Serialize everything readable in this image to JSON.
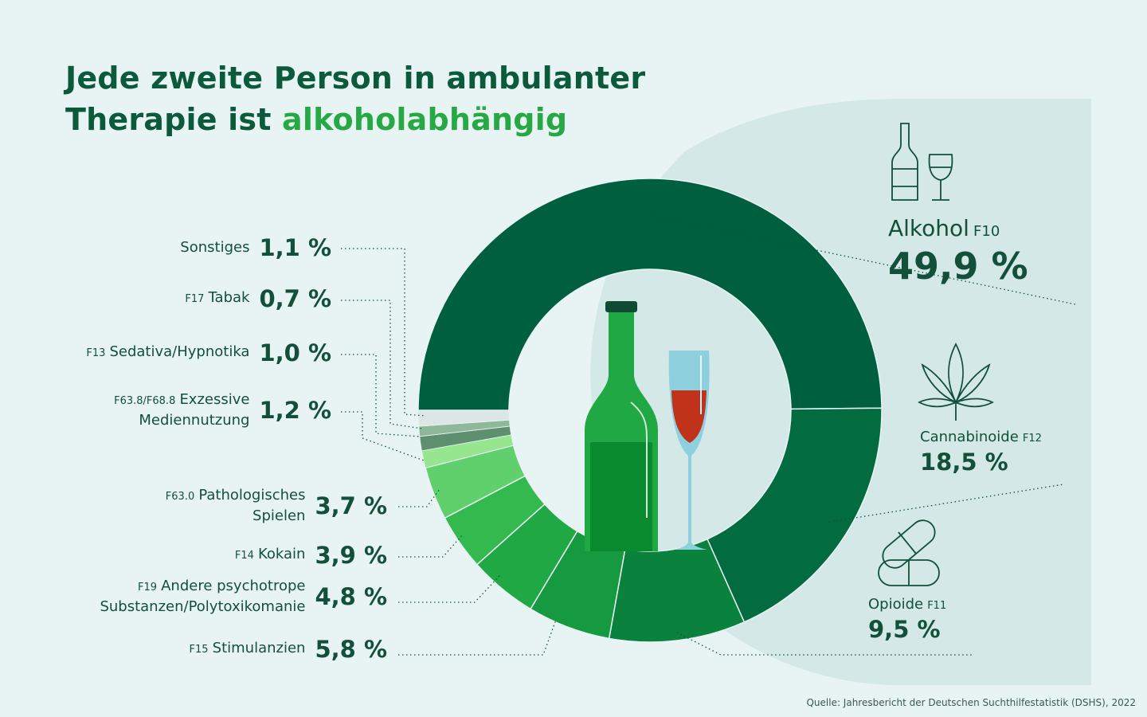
{
  "header": {
    "title_line1": "Jede zweite Person in ambulanter",
    "title_line2_prefix": "Therapie ist ",
    "title_highlight": "alkoholabhängig"
  },
  "source": "Quelle: Jahresbericht der Deutschen Suchthilfestatistik (DSHS), 2022",
  "colors": {
    "background": "#e8f4f3",
    "panel": "#d3e8e7",
    "title": "#0b5a3c",
    "highlight": "#27a844"
  },
  "icons": [
    "bottle-glass-icon",
    "cannabis-leaf-icon",
    "pill-capsule-icon",
    "beer-bottle-icon",
    "wine-glass-icon"
  ],
  "chart_data": {
    "type": "pie",
    "variant": "donut",
    "unit": "%",
    "slices": [
      {
        "code": "F10",
        "name": "Alkohol",
        "value": 49.9,
        "label": "49,9 %",
        "color": "#005f3e"
      },
      {
        "code": "F12",
        "name": "Cannabinoide",
        "value": 18.5,
        "label": "18,5 %",
        "color": "#026b40"
      },
      {
        "code": "F11",
        "name": "Opioide",
        "value": 9.5,
        "label": "9,5 %",
        "color": "#0a813d"
      },
      {
        "code": "F15",
        "name": "Stimulanzien",
        "value": 5.8,
        "label": "5,8 %",
        "color": "#169a3f"
      },
      {
        "code": "F19",
        "name": "Andere psychotrope Substanzen/Polytoxikomanie",
        "line1": "Andere psychotrope",
        "line2": "Substanzen/Polytoxikomanie",
        "value": 4.8,
        "label": "4,8 %",
        "color": "#20a845"
      },
      {
        "code": "F14",
        "name": "Kokain",
        "value": 3.9,
        "label": "3,9 %",
        "color": "#34b94f"
      },
      {
        "code": "F63.0",
        "name": "Pathologisches Spielen",
        "line1": "Pathologisches",
        "line2": "Spielen",
        "value": 3.7,
        "label": "3,7 %",
        "color": "#5fd06b"
      },
      {
        "code": "F63.8/F68.8",
        "name": "Exzessive Mediennutzung",
        "line1": "Exzessive",
        "line2": "Mediennutzung",
        "value": 1.2,
        "label": "1,2 %",
        "color": "#95e68f"
      },
      {
        "code": "F13",
        "name": "Sedativa/Hypnotika",
        "value": 1.0,
        "label": "1,0 %",
        "color": "#5e8f6e"
      },
      {
        "code": "F17",
        "name": "Tabak",
        "value": 0.7,
        "label": "0,7 %",
        "color": "#8fb89a"
      },
      {
        "code": "",
        "name": "Sonstiges",
        "value": 1.1,
        "label": "1,1 %",
        "color": "#dce6e5"
      }
    ]
  }
}
